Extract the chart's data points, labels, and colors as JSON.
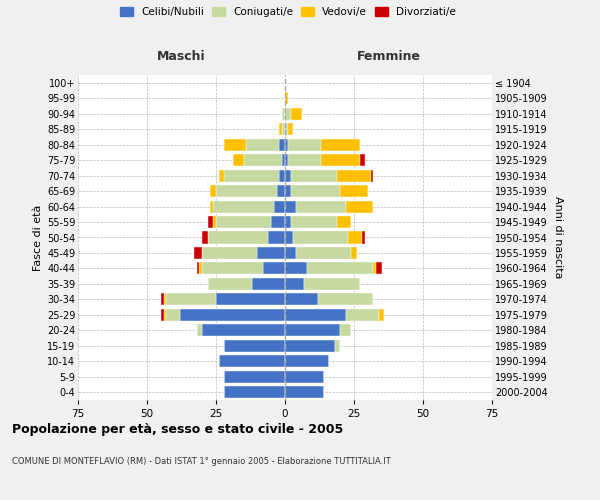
{
  "age_groups": [
    "0-4",
    "5-9",
    "10-14",
    "15-19",
    "20-24",
    "25-29",
    "30-34",
    "35-39",
    "40-44",
    "45-49",
    "50-54",
    "55-59",
    "60-64",
    "65-69",
    "70-74",
    "75-79",
    "80-84",
    "85-89",
    "90-94",
    "95-99",
    "100+"
  ],
  "birth_years": [
    "2000-2004",
    "1995-1999",
    "1990-1994",
    "1985-1989",
    "1980-1984",
    "1975-1979",
    "1970-1974",
    "1965-1969",
    "1960-1964",
    "1955-1959",
    "1950-1954",
    "1945-1949",
    "1940-1944",
    "1935-1939",
    "1930-1934",
    "1925-1929",
    "1920-1924",
    "1915-1919",
    "1910-1914",
    "1905-1909",
    "≤ 1904"
  ],
  "males": {
    "celibe": [
      22,
      22,
      24,
      22,
      30,
      38,
      25,
      12,
      8,
      10,
      6,
      5,
      4,
      3,
      2,
      1,
      2,
      0,
      0,
      0,
      0
    ],
    "coniugato": [
      0,
      0,
      0,
      0,
      2,
      5,
      18,
      16,
      22,
      20,
      22,
      20,
      22,
      22,
      20,
      14,
      12,
      1,
      1,
      0,
      0
    ],
    "vedovo": [
      0,
      0,
      0,
      0,
      0,
      1,
      1,
      0,
      1,
      0,
      0,
      1,
      1,
      2,
      2,
      4,
      8,
      1,
      0,
      0,
      0
    ],
    "divorziato": [
      0,
      0,
      0,
      0,
      0,
      1,
      1,
      0,
      1,
      3,
      2,
      2,
      0,
      0,
      0,
      0,
      0,
      0,
      0,
      0,
      0
    ]
  },
  "females": {
    "nubile": [
      14,
      14,
      16,
      18,
      20,
      22,
      12,
      7,
      8,
      4,
      3,
      2,
      4,
      2,
      2,
      1,
      1,
      0,
      0,
      0,
      0
    ],
    "coniugata": [
      0,
      0,
      0,
      2,
      4,
      12,
      20,
      20,
      24,
      20,
      20,
      17,
      18,
      18,
      17,
      12,
      12,
      1,
      2,
      0,
      0
    ],
    "vedova": [
      0,
      0,
      0,
      0,
      0,
      2,
      0,
      0,
      1,
      2,
      5,
      5,
      10,
      10,
      12,
      14,
      14,
      2,
      4,
      1,
      0
    ],
    "divorziata": [
      0,
      0,
      0,
      0,
      0,
      0,
      0,
      0,
      2,
      0,
      1,
      0,
      0,
      0,
      1,
      2,
      0,
      0,
      0,
      0,
      0
    ]
  },
  "colors": {
    "celibe": "#4472c4",
    "coniugato": "#c5d9a0",
    "vedovo": "#ffc000",
    "divorziato": "#cc0000"
  },
  "xlim": 75,
  "title": "Popolazione per età, sesso e stato civile - 2005",
  "subtitle": "COMUNE DI MONTEFLAVIO (RM) - Dati ISTAT 1° gennaio 2005 - Elaborazione TUTTITALIA.IT",
  "ylabel_left": "Fasce di età",
  "ylabel_right": "Anni di nascita",
  "xlabel_left": "Maschi",
  "xlabel_right": "Femmine",
  "legend_labels": [
    "Celibi/Nubili",
    "Coniugati/e",
    "Vedovi/e",
    "Divorziati/e"
  ],
  "bg_color": "#f0f0f0",
  "plot_bg": "#ffffff"
}
